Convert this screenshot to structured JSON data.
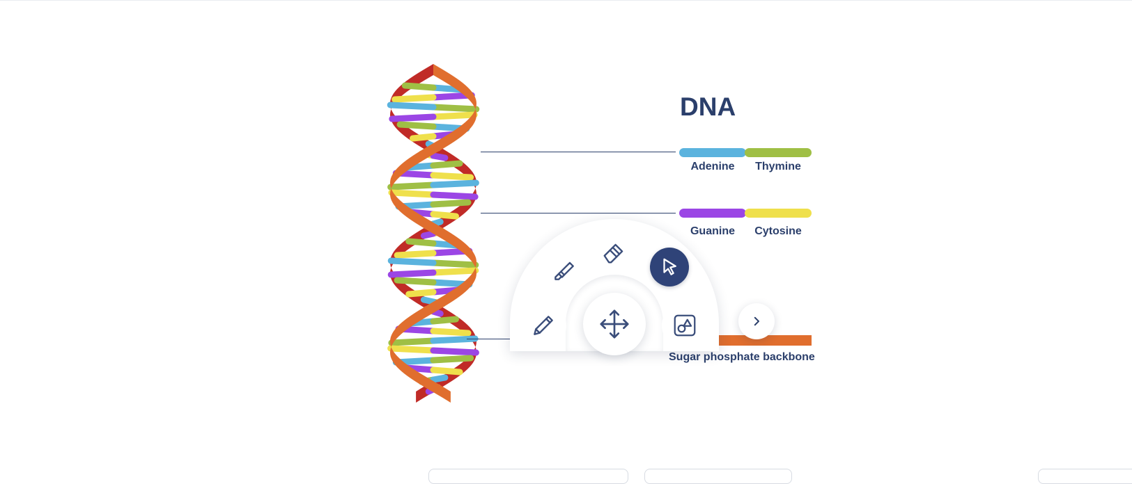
{
  "diagram": {
    "title": "DNA",
    "colors": {
      "adenine": "#5bb3de",
      "thymine": "#9fbf45",
      "guanine": "#9b46e5",
      "cytosine": "#efe04c",
      "backbone_front": "#e06e2e",
      "backbone_back": "#c02b27",
      "text": "#2b3f6b"
    },
    "pairs": [
      {
        "left": "Adenine",
        "right": "Thymine"
      },
      {
        "left": "Guanine",
        "right": "Cytosine"
      }
    ],
    "backbone_label": "Sugar phosphate backbone"
  },
  "toolbar": {
    "tools": [
      {
        "name": "pen",
        "icon": "pencil-icon"
      },
      {
        "name": "highlighter",
        "icon": "highlighter-icon"
      },
      {
        "name": "eraser",
        "icon": "eraser-icon"
      },
      {
        "name": "select",
        "icon": "cursor-arrow-icon",
        "active": true
      },
      {
        "name": "move",
        "icon": "move-arrows-icon"
      },
      {
        "name": "shapes",
        "icon": "shapes-icon"
      },
      {
        "name": "more",
        "icon": "chevron-right-icon"
      }
    ],
    "active_color": "#2f4378"
  }
}
